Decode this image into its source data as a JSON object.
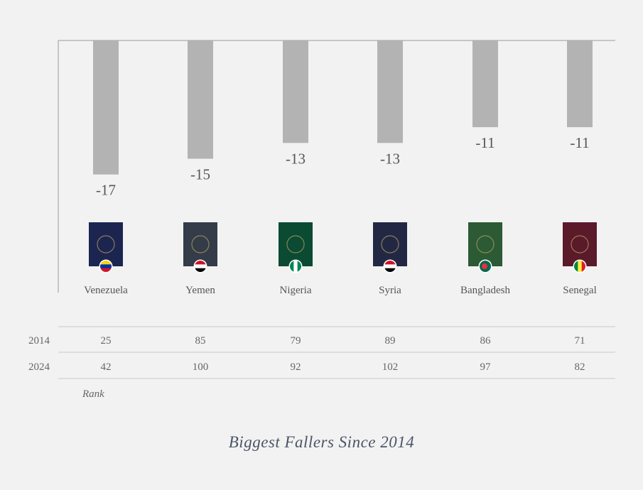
{
  "chart_data": {
    "type": "bar",
    "title": "Biggest Fallers Since 2014",
    "categories": [
      "Venezuela",
      "Yemen",
      "Nigeria",
      "Syria",
      "Bangladesh",
      "Senegal"
    ],
    "values": [
      -17,
      -15,
      -13,
      -13,
      -11,
      -11
    ],
    "value_labels": [
      "-17",
      "-15",
      "-13",
      "-13",
      "-11",
      "-11"
    ],
    "bar_color": "#b3b3b3",
    "grid": false,
    "passports": [
      {
        "cover": "#1c2550",
        "flag": [
          "#f7d117",
          "#0033a0",
          "#cf142b"
        ],
        "flag_type": "h3"
      },
      {
        "cover": "#333c48",
        "flag": [
          "#ce1126",
          "#ffffff",
          "#000000"
        ],
        "flag_type": "h3"
      },
      {
        "cover": "#0b4a33",
        "flag": [
          "#008751",
          "#ffffff",
          "#008751"
        ],
        "flag_type": "v3"
      },
      {
        "cover": "#222844",
        "flag": [
          "#ce1126",
          "#ffffff",
          "#000000"
        ],
        "flag_type": "h3"
      },
      {
        "cover": "#2b5a35",
        "flag": [
          "#006a4e",
          "#f42a41"
        ],
        "flag_type": "disc"
      },
      {
        "cover": "#5a1a2a",
        "flag": [
          "#00853f",
          "#fdef42",
          "#e31b23"
        ],
        "flag_type": "v3"
      }
    ],
    "table": {
      "row_label": "Rank",
      "rows": [
        {
          "year": "2014",
          "values": [
            "25",
            "85",
            "79",
            "89",
            "86",
            "71"
          ]
        },
        {
          "year": "2024",
          "values": [
            "42",
            "100",
            "92",
            "102",
            "97",
            "82"
          ]
        }
      ]
    }
  }
}
